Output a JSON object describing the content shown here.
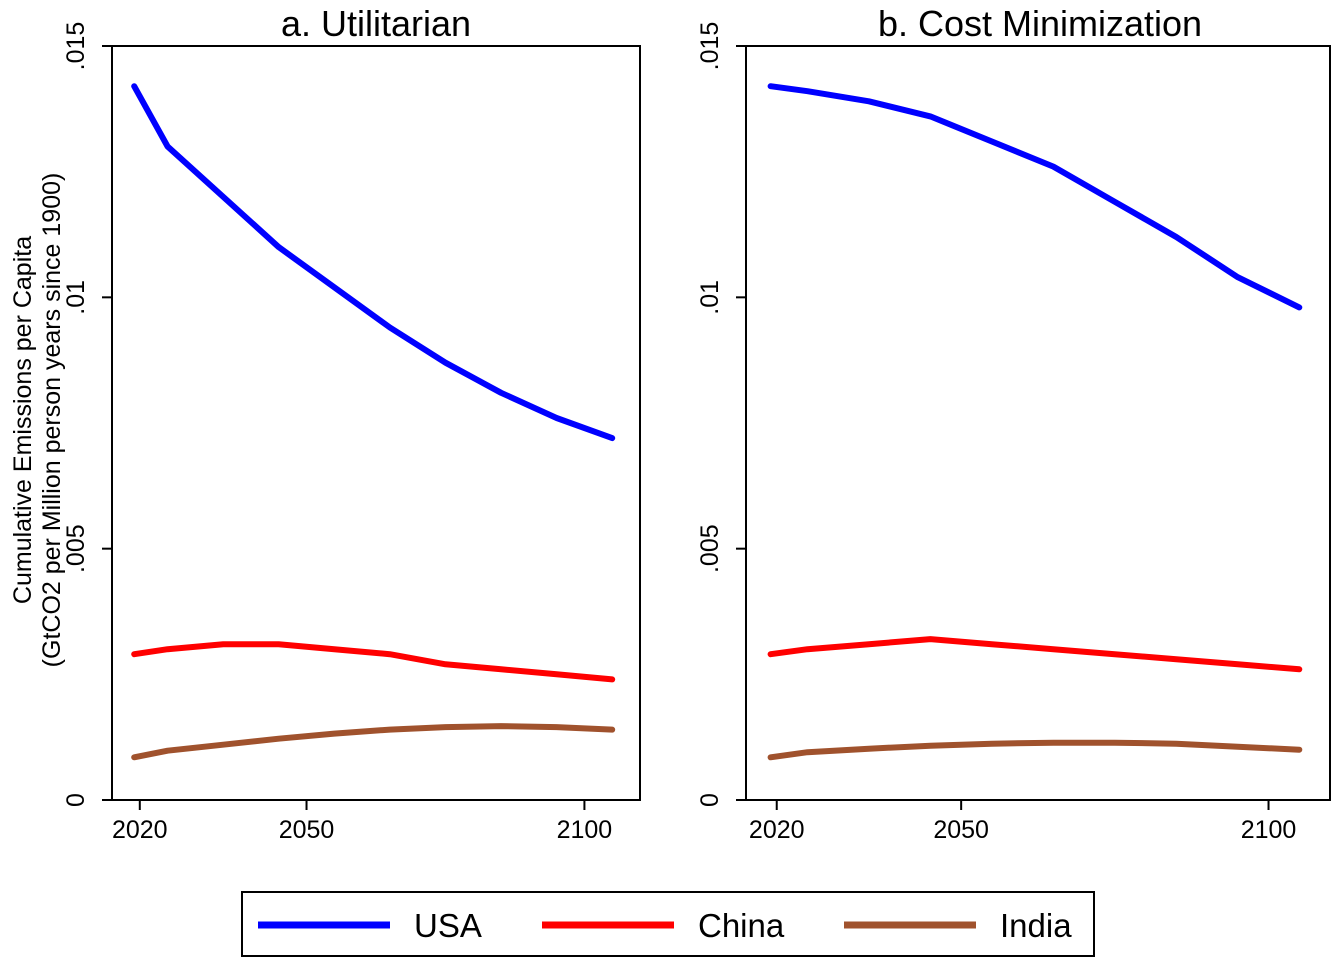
{
  "chart_data": [
    {
      "type": "line",
      "title": "a. Utilitarian",
      "ylabel": "Cumulative Emissions per Capita",
      "ylabel_line2": "(GtCO2 per Million person  years since 1900)",
      "xlabel": "",
      "xticks": [
        "2020",
        "2050",
        "2100"
      ],
      "yticks": [
        "0",
        ".005",
        ".01",
        ".015"
      ],
      "xlim": [
        2015,
        2110
      ],
      "ylim": [
        0,
        0.015
      ],
      "x": [
        2019,
        2025,
        2035,
        2045,
        2055,
        2065,
        2075,
        2085,
        2095,
        2105
      ],
      "series": [
        {
          "name": "USA",
          "color": "#0000ff",
          "values": [
            0.0142,
            0.013,
            0.012,
            0.011,
            0.0102,
            0.0094,
            0.0087,
            0.0081,
            0.0076,
            0.0072
          ]
        },
        {
          "name": "China",
          "color": "#ff0000",
          "values": [
            0.0029,
            0.003,
            0.0031,
            0.0031,
            0.003,
            0.0029,
            0.0027,
            0.0026,
            0.0025,
            0.0024
          ]
        },
        {
          "name": "India",
          "color": "#a0522d",
          "values": [
            0.00085,
            0.00098,
            0.0011,
            0.00122,
            0.00132,
            0.0014,
            0.00145,
            0.00147,
            0.00145,
            0.0014
          ]
        }
      ],
      "grid": false
    },
    {
      "type": "line",
      "title": "b. Cost  Minimization",
      "xlabel": "",
      "xticks": [
        "2020",
        "2050",
        "2100"
      ],
      "yticks": [
        "0",
        ".005",
        ".01",
        ".015"
      ],
      "xlim": [
        2015,
        2110
      ],
      "ylim": [
        0,
        0.015
      ],
      "x": [
        2019,
        2025,
        2035,
        2045,
        2055,
        2065,
        2075,
        2085,
        2095,
        2105
      ],
      "series": [
        {
          "name": "USA",
          "color": "#0000ff",
          "values": [
            0.0142,
            0.0141,
            0.0139,
            0.0136,
            0.0131,
            0.0126,
            0.0119,
            0.0112,
            0.0104,
            0.0098
          ]
        },
        {
          "name": "China",
          "color": "#ff0000",
          "values": [
            0.0029,
            0.003,
            0.0031,
            0.0032,
            0.0031,
            0.003,
            0.0029,
            0.0028,
            0.0027,
            0.0026
          ]
        },
        {
          "name": "India",
          "color": "#a0522d",
          "values": [
            0.00085,
            0.00095,
            0.00102,
            0.00108,
            0.00112,
            0.00114,
            0.00114,
            0.00112,
            0.00106,
            0.001
          ]
        }
      ],
      "grid": false
    }
  ],
  "legend": {
    "position": "bottom",
    "items": [
      {
        "label": "USA",
        "color": "#0000ff"
      },
      {
        "label": "China",
        "color": "#ff0000"
      },
      {
        "label": "India",
        "color": "#a0522d"
      }
    ]
  }
}
